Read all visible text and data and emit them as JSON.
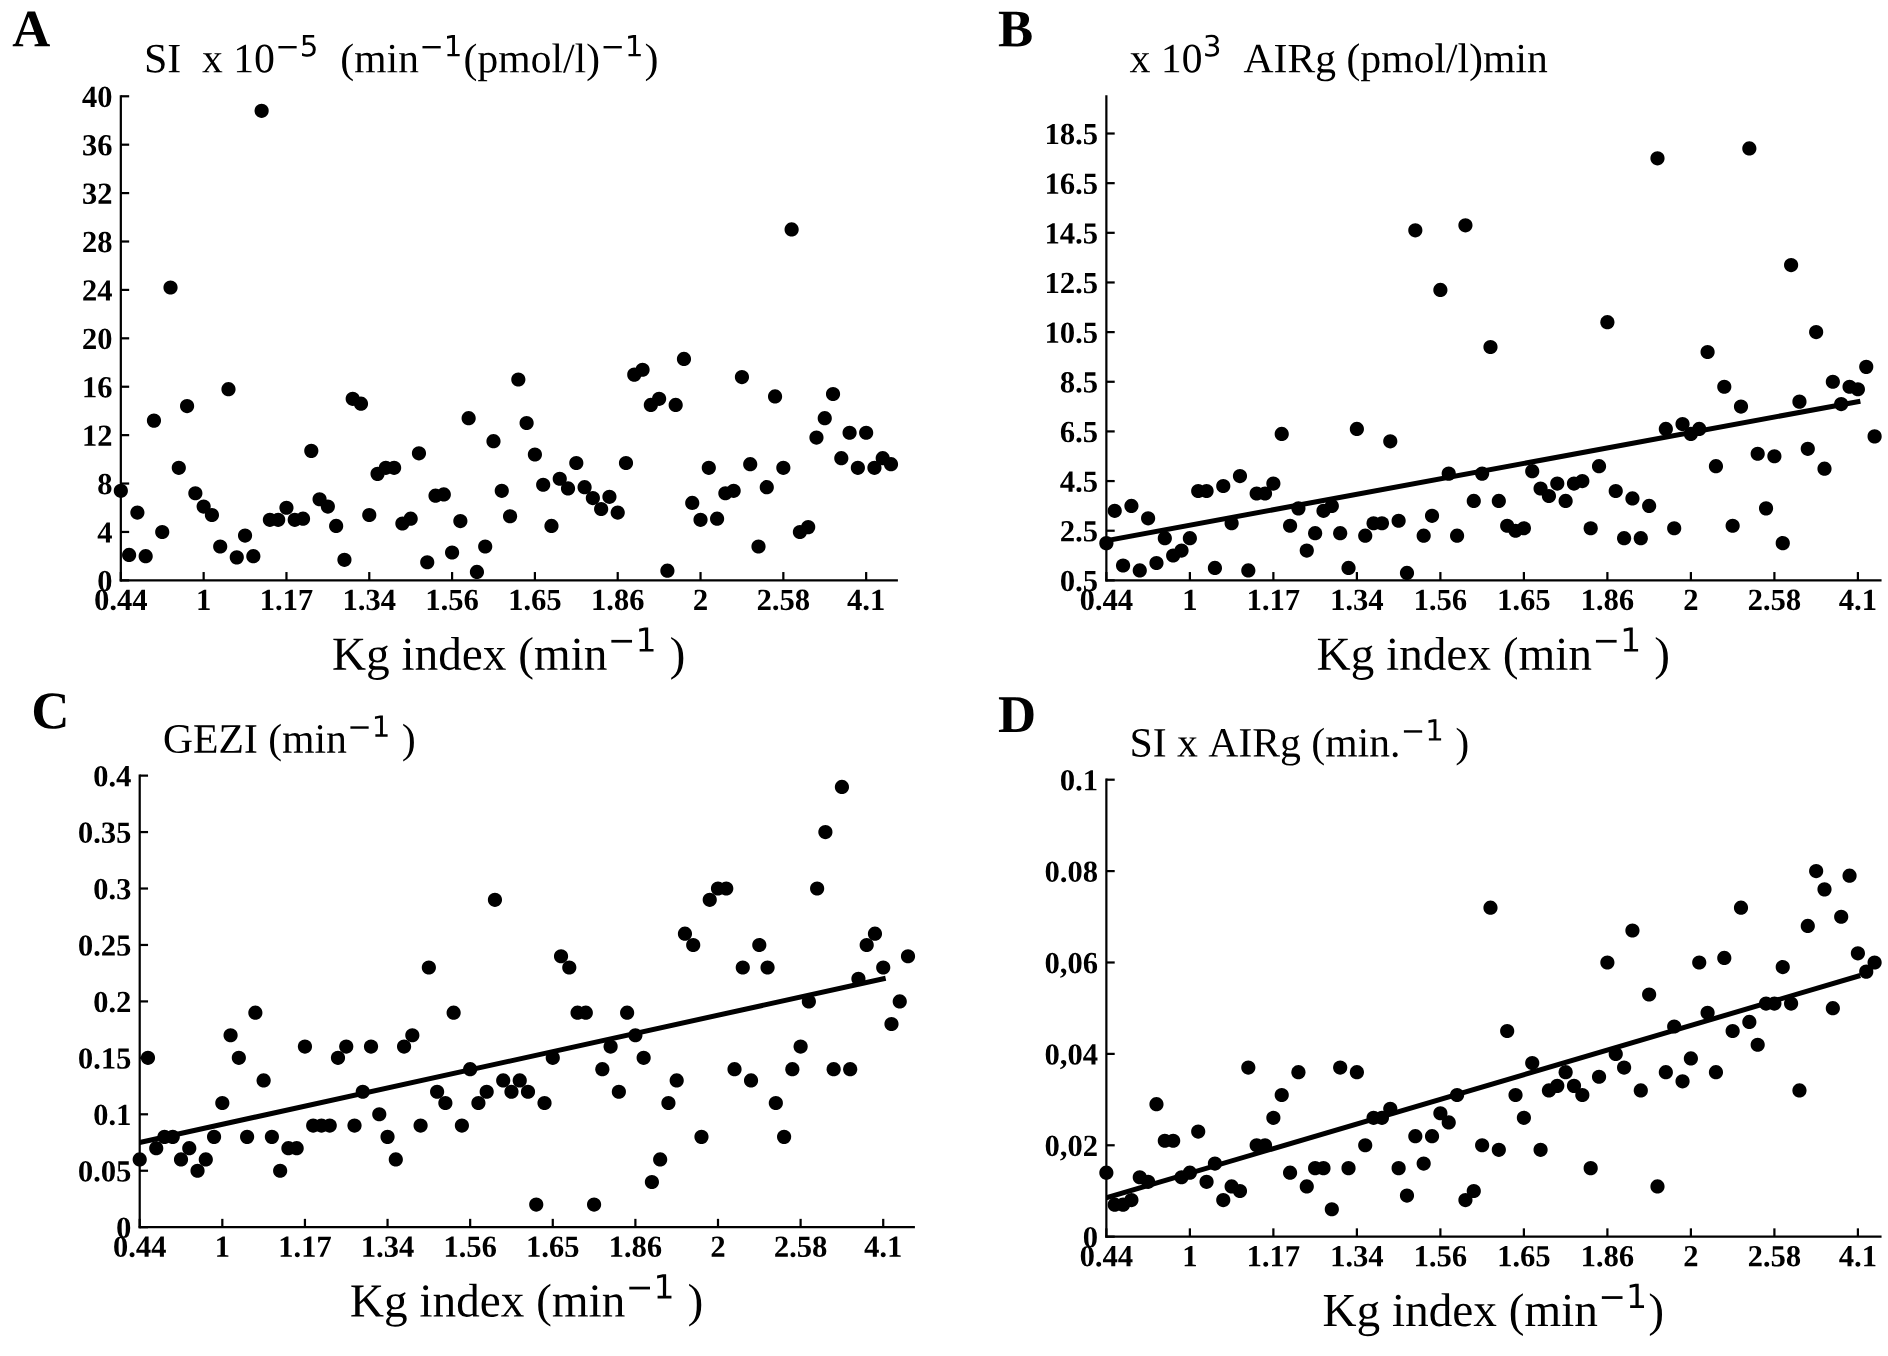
{
  "chart_data": [
    {
      "type": "scatter",
      "annotations": [
        "A"
      ],
      "ylabel": "SI  x 10$^{−5}$  (min$^{−1}$(pmol/l)$^{−1}$)",
      "xlabel": "Kg index (min$^{−1}$ )",
      "grid": false,
      "categories": [
        "0.44",
        null,
        null,
        null,
        null,
        null,
        null,
        null,
        null,
        null,
        "1",
        null,
        null,
        null,
        null,
        null,
        null,
        null,
        null,
        null,
        "1.17",
        null,
        null,
        null,
        null,
        null,
        null,
        null,
        null,
        null,
        "1.34",
        null,
        null,
        null,
        null,
        null,
        null,
        null,
        null,
        null,
        "1.56",
        null,
        null,
        null,
        null,
        null,
        null,
        null,
        null,
        null,
        "1.65",
        null,
        null,
        null,
        null,
        null,
        null,
        null,
        null,
        null,
        "1.86",
        null,
        null,
        null,
        null,
        null,
        null,
        null,
        null,
        null,
        "2",
        null,
        null,
        null,
        null,
        null,
        null,
        null,
        null,
        null,
        "2.58",
        null,
        null,
        null,
        null,
        null,
        null,
        null,
        null,
        null,
        "4.1",
        null,
        null,
        null
      ],
      "ylim": [
        0,
        40
      ],
      "yticks": [
        0,
        4,
        8,
        12,
        16,
        20,
        24,
        28,
        32,
        36,
        40
      ],
      "series": [
        {
          "color": "#000000",
          "marker": "circle",
          "values": [
            7.4,
            2.1,
            5.6,
            2.0,
            13.2,
            4.0,
            24.2,
            9.3,
            14.4,
            7.2,
            6.1,
            5.4,
            2.8,
            15.8,
            1.9,
            3.7,
            2.0,
            38.8,
            5.0,
            5.0,
            6.0,
            5.0,
            5.1,
            10.7,
            6.7,
            6.1,
            4.5,
            1.7,
            15.0,
            14.6,
            5.4,
            8.8,
            9.3,
            9.3,
            4.7,
            5.1,
            10.5,
            1.5,
            7.0,
            7.1,
            2.3,
            4.9,
            13.4,
            0.7,
            2.8,
            11.5,
            7.4,
            5.3,
            16.6,
            13.0,
            10.4,
            7.9,
            4.5,
            8.4,
            7.6,
            9.7,
            7.7,
            6.8,
            5.9,
            6.9,
            5.6,
            9.7,
            17.0,
            17.4,
            14.5,
            15.0,
            0.8,
            14.5,
            18.3,
            6.4,
            5.0,
            9.3,
            5.1,
            7.2,
            7.4,
            16.8,
            9.6,
            2.8,
            7.7,
            15.2,
            9.3,
            29.0,
            4.0,
            4.4,
            11.8,
            13.4,
            15.4,
            10.1,
            12.2,
            9.3,
            12.2,
            9.3,
            10.1,
            9.6
          ]
        }
      ]
    },
    {
      "type": "scatter",
      "annotations": [
        "B"
      ],
      "ylabel": "x 10$^{3}$  AIRg (pmol/l)min",
      "xlabel": "Kg index (min$^{−1}$ )",
      "grid": false,
      "categories": [
        "0.44",
        null,
        null,
        null,
        null,
        null,
        null,
        null,
        null,
        null,
        "1",
        null,
        null,
        null,
        null,
        null,
        null,
        null,
        null,
        null,
        "1.17",
        null,
        null,
        null,
        null,
        null,
        null,
        null,
        null,
        null,
        "1.34",
        null,
        null,
        null,
        null,
        null,
        null,
        null,
        null,
        null,
        "1.56",
        null,
        null,
        null,
        null,
        null,
        null,
        null,
        null,
        null,
        "1.65",
        null,
        null,
        null,
        null,
        null,
        null,
        null,
        null,
        null,
        "1.86",
        null,
        null,
        null,
        null,
        null,
        null,
        null,
        null,
        null,
        "2",
        null,
        null,
        null,
        null,
        null,
        null,
        null,
        null,
        null,
        "2.58",
        null,
        null,
        null,
        null,
        null,
        null,
        null,
        null,
        null,
        "4.1",
        null,
        null
      ],
      "ylim": [
        0.5,
        20
      ],
      "yticks": [
        0.5,
        2.5,
        4.5,
        6.5,
        8.5,
        10.5,
        12.5,
        14.5,
        16.5,
        18.5
      ],
      "series": [
        {
          "color": "#000000",
          "marker": "circle",
          "values": [
            2.0,
            3.3,
            1.1,
            3.5,
            0.9,
            3.0,
            1.2,
            2.2,
            1.5,
            1.7,
            2.2,
            4.1,
            4.1,
            1.0,
            4.3,
            2.8,
            4.7,
            0.9,
            4.0,
            4.0,
            4.4,
            6.4,
            2.7,
            3.4,
            1.7,
            2.4,
            3.3,
            3.5,
            2.4,
            1.0,
            6.6,
            2.3,
            2.8,
            2.8,
            6.1,
            2.9,
            0.8,
            14.6,
            2.3,
            3.1,
            12.2,
            4.8,
            2.3,
            14.8,
            3.7,
            4.8,
            9.9,
            3.7,
            2.7,
            2.5,
            2.6,
            4.9,
            4.2,
            3.9,
            4.4,
            3.7,
            4.4,
            4.5,
            2.6,
            5.1,
            10.9,
            4.1,
            2.2,
            3.8,
            2.2,
            3.5,
            17.5,
            6.6,
            2.6,
            6.8,
            6.4,
            6.6,
            9.7,
            5.1,
            8.3,
            2.7,
            7.5,
            17.9,
            5.6,
            3.4,
            5.5,
            2.0,
            13.2,
            7.7,
            5.8,
            10.5,
            5.0,
            8.5,
            7.6,
            8.3,
            8.2,
            9.1,
            6.3
          ]
        },
        {
          "type": "line",
          "color": "#000000",
          "x": [
            "0.44",
            "4.1"
          ],
          "values": [
            2.1,
            7.7
          ]
        }
      ]
    },
    {
      "type": "scatter",
      "annotations": [
        "C"
      ],
      "ylabel": "GEZI (min$^{−1}$ )",
      "xlabel": "Kg index (min$^{−1}$ )",
      "grid": false,
      "categories": [
        "0.44",
        null,
        null,
        null,
        null,
        null,
        null,
        null,
        null,
        null,
        "1",
        null,
        null,
        null,
        null,
        null,
        null,
        null,
        null,
        null,
        "1.17",
        null,
        null,
        null,
        null,
        null,
        null,
        null,
        null,
        null,
        "1.34",
        null,
        null,
        null,
        null,
        null,
        null,
        null,
        null,
        null,
        "1.56",
        null,
        null,
        null,
        null,
        null,
        null,
        null,
        null,
        null,
        "1.65",
        null,
        null,
        null,
        null,
        null,
        null,
        null,
        null,
        null,
        "1.86",
        null,
        null,
        null,
        null,
        null,
        null,
        null,
        null,
        null,
        "2",
        null,
        null,
        null,
        null,
        null,
        null,
        null,
        null,
        null,
        "2.58",
        null,
        null,
        null,
        null,
        null,
        null,
        null,
        null,
        null,
        "4.1",
        null,
        null,
        null
      ],
      "ylim": [
        0,
        0.4
      ],
      "yticks": [
        0,
        0.05,
        0.1,
        0.15,
        0.2,
        0.25,
        0.3,
        0.35,
        0.4
      ],
      "series": [
        {
          "color": "#000000",
          "marker": "circle",
          "values": [
            0.06,
            0.15,
            0.07,
            0.08,
            0.08,
            0.06,
            0.07,
            0.05,
            0.06,
            0.08,
            0.11,
            0.17,
            0.15,
            0.08,
            0.19,
            0.13,
            0.08,
            0.05,
            0.07,
            0.07,
            0.16,
            0.09,
            0.09,
            0.09,
            0.15,
            0.16,
            0.09,
            0.12,
            0.16,
            0.1,
            0.08,
            0.06,
            0.16,
            0.17,
            0.09,
            0.23,
            0.12,
            0.11,
            0.19,
            0.09,
            0.14,
            0.11,
            0.12,
            0.29,
            0.13,
            0.12,
            0.13,
            0.12,
            0.02,
            0.11,
            0.15,
            0.24,
            0.23,
            0.19,
            0.19,
            0.02,
            0.14,
            0.16,
            0.12,
            0.19,
            0.17,
            0.15,
            0.04,
            0.06,
            0.11,
            0.13,
            0.26,
            0.25,
            0.08,
            0.29,
            0.3,
            0.3,
            0.14,
            0.23,
            0.13,
            0.25,
            0.23,
            0.11,
            0.08,
            0.14,
            0.16,
            0.2,
            0.3,
            0.35,
            0.14,
            0.39,
            0.14,
            0.22,
            0.25,
            0.26,
            0.23,
            0.18,
            0.2,
            0.24
          ]
        },
        {
          "type": "line",
          "color": "#000000",
          "x": [
            "0.44",
            "4.1"
          ],
          "values": [
            0.075,
            0.22
          ]
        }
      ]
    },
    {
      "type": "scatter",
      "annotations": [
        "D"
      ],
      "ylabel": "SI x AIRg (min.$^{−1}$ )",
      "xlabel": "Kg index (min$^{−1}$)",
      "grid": false,
      "categories": [
        "0.44",
        null,
        null,
        null,
        null,
        null,
        null,
        null,
        null,
        null,
        "1",
        null,
        null,
        null,
        null,
        null,
        null,
        null,
        null,
        null,
        "1.17",
        null,
        null,
        null,
        null,
        null,
        null,
        null,
        null,
        null,
        "1.34",
        null,
        null,
        null,
        null,
        null,
        null,
        null,
        null,
        null,
        "1.56",
        null,
        null,
        null,
        null,
        null,
        null,
        null,
        null,
        null,
        "1.65",
        null,
        null,
        null,
        null,
        null,
        null,
        null,
        null,
        null,
        "1.86",
        null,
        null,
        null,
        null,
        null,
        null,
        null,
        null,
        null,
        "2",
        null,
        null,
        null,
        null,
        null,
        null,
        null,
        null,
        null,
        "2.58",
        null,
        null,
        null,
        null,
        null,
        null,
        null,
        null,
        null,
        "4.1",
        null,
        null
      ],
      "ylim": [
        0,
        0.1
      ],
      "yticks": [
        0,
        {
          "value": 0.02,
          "label": "0,02"
        },
        {
          "value": 0.04,
          "label": "0,04"
        },
        {
          "value": 0.06,
          "label": "0,06"
        },
        0.08,
        0.1
      ],
      "series": [
        {
          "color": "#000000",
          "marker": "circle",
          "values": [
            0.014,
            0.007,
            0.007,
            0.008,
            0.013,
            0.012,
            0.029,
            0.021,
            0.021,
            0.013,
            0.014,
            0.023,
            0.012,
            0.016,
            0.008,
            0.011,
            0.01,
            0.037,
            0.02,
            0.02,
            0.026,
            0.031,
            0.014,
            0.036,
            0.011,
            0.015,
            0.015,
            0.006,
            0.037,
            0.015,
            0.036,
            0.02,
            0.026,
            0.026,
            0.028,
            0.015,
            0.009,
            0.022,
            0.016,
            0.022,
            0.027,
            0.025,
            0.031,
            0.008,
            0.01,
            0.02,
            0.072,
            0.019,
            0.045,
            0.031,
            0.026,
            0.038,
            0.019,
            0.032,
            0.033,
            0.036,
            0.033,
            0.031,
            0.015,
            0.035,
            0.06,
            0.04,
            0.037,
            0.067,
            0.032,
            0.053,
            0.011,
            0.036,
            0.046,
            0.034,
            0.039,
            0.06,
            0.049,
            0.036,
            0.061,
            0.045,
            0.072,
            0.047,
            0.042,
            0.051,
            0.051,
            0.059,
            0.051,
            0.032,
            0.068,
            0.08,
            0.076,
            0.05,
            0.07,
            0.079,
            0.062,
            0.058,
            0.06
          ]
        },
        {
          "type": "line",
          "color": "#000000",
          "x": [
            "0.44",
            "4.1"
          ],
          "values": [
            0.0085,
            0.057
          ]
        }
      ]
    }
  ]
}
